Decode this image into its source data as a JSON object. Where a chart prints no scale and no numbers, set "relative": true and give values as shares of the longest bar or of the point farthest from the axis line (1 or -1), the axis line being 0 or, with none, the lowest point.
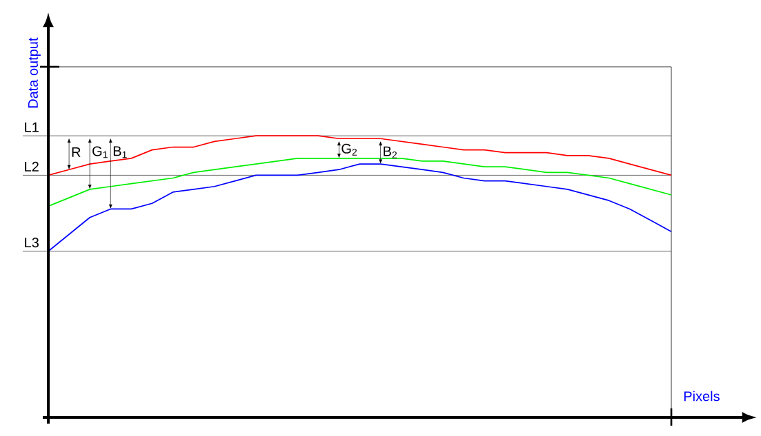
{
  "chart_data": {
    "type": "line",
    "relative": true,
    "xlabel": "Pixels",
    "ylabel": "Data output",
    "categories": [
      null,
      null,
      null,
      null,
      null,
      null,
      null,
      null,
      null,
      null,
      null,
      null,
      null,
      null,
      null,
      null,
      null,
      null,
      null,
      null,
      null,
      null,
      null,
      null,
      null,
      null,
      null,
      null,
      null,
      null,
      null
    ],
    "series": [
      {
        "color": "#ff0000",
        "values": [
          0.86,
          0.88,
          0.9,
          0.91,
          0.92,
          0.95,
          0.96,
          0.96,
          0.98,
          0.99,
          1,
          1,
          1,
          1,
          0.99,
          0.99,
          0.99,
          0.98,
          0.97,
          0.96,
          0.95,
          0.95,
          0.94,
          0.94,
          0.94,
          0.93,
          0.93,
          0.92,
          0.9,
          0.88,
          0.86
        ]
      },
      {
        "color": "#00ee00",
        "values": [
          0.75,
          0.78,
          0.81,
          0.82,
          0.83,
          0.84,
          0.85,
          0.87,
          0.88,
          0.89,
          0.9,
          0.91,
          0.92,
          0.92,
          0.92,
          0.92,
          0.92,
          0.92,
          0.91,
          0.91,
          0.9,
          0.89,
          0.89,
          0.88,
          0.87,
          0.87,
          0.86,
          0.85,
          0.83,
          0.81,
          0.79
        ]
      },
      {
        "color": "#0000ff",
        "values": [
          0.59,
          0.65,
          0.71,
          0.74,
          0.74,
          0.76,
          0.8,
          0.81,
          0.82,
          0.84,
          0.86,
          0.86,
          0.86,
          0.87,
          0.88,
          0.9,
          0.9,
          0.89,
          0.88,
          0.87,
          0.85,
          0.84,
          0.84,
          0.83,
          0.82,
          0.81,
          0.79,
          0.77,
          0.74,
          0.7,
          0.66
        ]
      }
    ],
    "ref_lines": [
      {
        "axis": "y",
        "value": 1,
        "label": "L1",
        "color": "#404040"
      },
      {
        "axis": "y",
        "value": 0.86,
        "label": "L2",
        "color": "#404040"
      },
      {
        "axis": "y",
        "value": 0.59,
        "label": "L3",
        "color": "#404040"
      }
    ],
    "annotations": [
      "R",
      "G$_{1}$",
      "B$_{1}$",
      "G$_{2}$",
      "B$_{2}$"
    ]
  }
}
